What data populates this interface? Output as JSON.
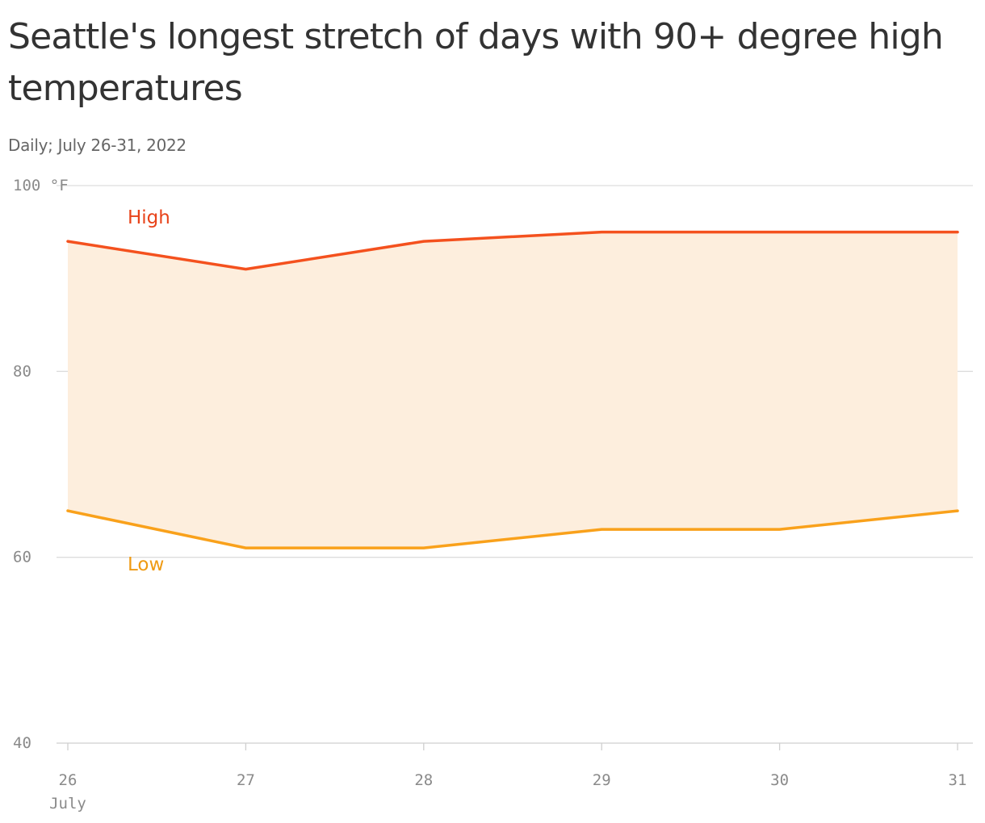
{
  "chart_data": {
    "type": "area",
    "title": "Seattle's longest stretch of days with 90+ degree high temperatures",
    "subtitle": "Daily; July 26-31, 2022",
    "x": [
      "26",
      "27",
      "28",
      "29",
      "30",
      "31"
    ],
    "x_month_label": "July",
    "ylim": [
      40,
      100
    ],
    "yticks": [
      40,
      60,
      80,
      100
    ],
    "ytick_labels": [
      "40",
      "60",
      "80",
      "100 °F"
    ],
    "grid": true,
    "series": [
      {
        "name": "High",
        "values": [
          94,
          91,
          94,
          95,
          95,
          95
        ],
        "color": "#f4511e"
      },
      {
        "name": "Low",
        "values": [
          65,
          61,
          61,
          63,
          63,
          65
        ],
        "color": "#f9a11b"
      }
    ],
    "band_fill": "#fdeedd"
  }
}
